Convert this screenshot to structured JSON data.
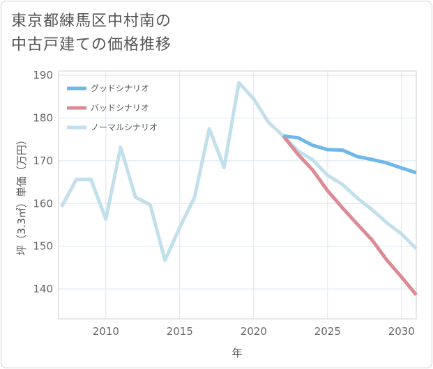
{
  "chart_data": {
    "type": "line",
    "title_lines": [
      "東京都練馬区中村南の",
      "中古戸建ての価格推移"
    ],
    "xlabel": "年",
    "ylabel": "坪（3.3㎡）単価（万円）",
    "xlim": [
      2006.8,
      2031
    ],
    "ylim": [
      133,
      191
    ],
    "xticks": [
      2010,
      2015,
      2020,
      2025,
      2030
    ],
    "yticks": [
      140,
      150,
      160,
      170,
      180,
      190
    ],
    "grid": true,
    "legend_position": "top-left",
    "series": [
      {
        "name": "グッドシナリオ",
        "color": "#6cb8ea",
        "x": [
          2022,
          2023,
          2024,
          2025,
          2026,
          2027,
          2028,
          2029,
          2030,
          2031
        ],
        "values": [
          175.8,
          175.4,
          173.6,
          172.6,
          172.5,
          171.0,
          170.3,
          169.5,
          168.3,
          167.2
        ]
      },
      {
        "name": "バッドシナリオ",
        "color": "#dc8a93",
        "x": [
          2022,
          2023,
          2024,
          2025,
          2026,
          2027,
          2028,
          2029,
          2030,
          2031
        ],
        "values": [
          175.8,
          171.5,
          167.8,
          163.0,
          159.0,
          155.2,
          151.5,
          146.8,
          142.8,
          138.6
        ]
      },
      {
        "name": "ノーマルシナリオ",
        "color": "#c2dfec",
        "x": [
          2007,
          2008,
          2009,
          2010,
          2011,
          2012,
          2013,
          2014,
          2015,
          2016,
          2017,
          2018,
          2019,
          2020,
          2021,
          2022,
          2023,
          2024,
          2025,
          2026,
          2027,
          2028,
          2029,
          2030,
          2031
        ],
        "values": [
          159.2,
          165.6,
          165.6,
          156.3,
          173.2,
          161.5,
          159.7,
          146.7,
          154.4,
          161.5,
          177.5,
          168.4,
          188.3,
          184.5,
          179.0,
          175.8,
          172.3,
          170.2,
          166.6,
          164.5,
          161.3,
          158.6,
          155.5,
          152.9,
          149.4
        ]
      }
    ]
  }
}
